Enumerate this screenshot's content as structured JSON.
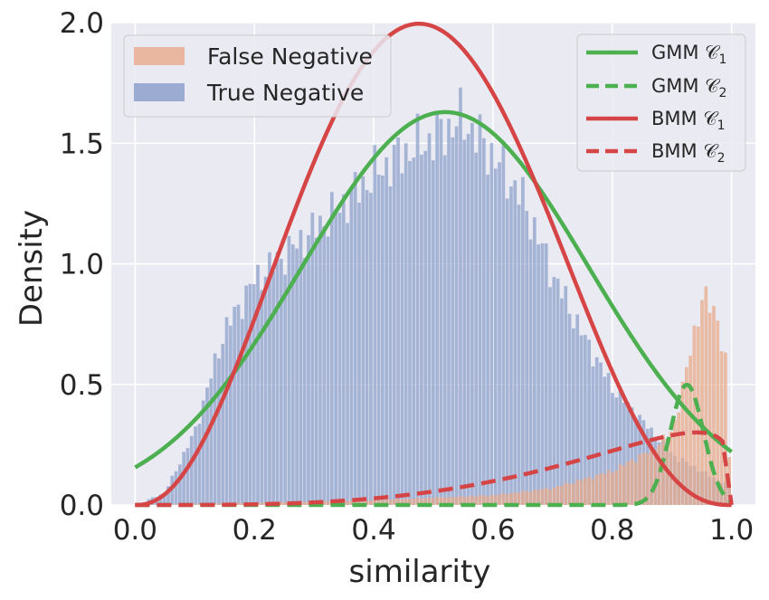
{
  "chart_data": {
    "type": "histogram",
    "xlabel": "similarity",
    "ylabel": "Density",
    "xlim": [
      -0.04,
      1.04
    ],
    "ylim": [
      0,
      2.0
    ],
    "xticks": [
      "0.0",
      "0.2",
      "0.4",
      "0.6",
      "0.8",
      "1.0"
    ],
    "yticks": [
      "0.0",
      "0.5",
      "1.0",
      "1.5",
      "2.0"
    ],
    "grid": true,
    "background": "#eaeaf2",
    "colors": {
      "true_negative": "#8da0cb",
      "false_negative": "#e8a98a",
      "gmm": "#4caf50",
      "bmm": "#d64545"
    },
    "histograms": [
      {
        "name": "False Negative",
        "color": "#e8a98a",
        "bins_x_start": 0.02,
        "bins_x_end": 1.0,
        "density_profile": [
          [
            0.02,
            0.0
          ],
          [
            0.2,
            0.01
          ],
          [
            0.4,
            0.02
          ],
          [
            0.6,
            0.04
          ],
          [
            0.7,
            0.07
          ],
          [
            0.8,
            0.14
          ],
          [
            0.86,
            0.22
          ],
          [
            0.9,
            0.3
          ],
          [
            0.92,
            0.5
          ],
          [
            0.95,
            0.86
          ],
          [
            0.975,
            0.8
          ],
          [
            0.99,
            0.6
          ],
          [
            1.0,
            0.0
          ]
        ]
      },
      {
        "name": "True Negative",
        "color": "#8da0cb",
        "bins_x_start": 0.02,
        "bins_x_end": 1.0,
        "density_profile": [
          [
            0.02,
            0.02
          ],
          [
            0.05,
            0.05
          ],
          [
            0.1,
            0.3
          ],
          [
            0.15,
            0.72
          ],
          [
            0.2,
            0.93
          ],
          [
            0.3,
            1.14
          ],
          [
            0.35,
            1.25
          ],
          [
            0.4,
            1.37
          ],
          [
            0.45,
            1.46
          ],
          [
            0.5,
            1.52
          ],
          [
            0.55,
            1.6
          ],
          [
            0.6,
            1.45
          ],
          [
            0.65,
            1.27
          ],
          [
            0.7,
            0.96
          ],
          [
            0.75,
            0.71
          ],
          [
            0.8,
            0.49
          ],
          [
            0.85,
            0.35
          ],
          [
            0.9,
            0.21
          ],
          [
            0.95,
            0.14
          ],
          [
            0.98,
            0.1
          ],
          [
            1.0,
            0.08
          ]
        ]
      }
    ],
    "curves": [
      {
        "name": "GMM 𝒞",
        "subscript": "1",
        "color": "#4caf50",
        "dash": "solid",
        "kind": "normal",
        "weight": 0.98,
        "mu": 0.52,
        "sigma": 0.24
      },
      {
        "name": "GMM 𝒞",
        "subscript": "2",
        "color": "#4caf50",
        "dash": "dashed",
        "kind": "normal",
        "weight": 0.035,
        "mu": 0.925,
        "sigma": 0.028
      },
      {
        "name": "BMM 𝒞",
        "subscript": "1",
        "color": "#d64545",
        "dash": "solid",
        "kind": "beta",
        "a": 3.37,
        "b": 3.61,
        "scale": 0.98
      },
      {
        "name": "BMM 𝒞",
        "subscript": "2",
        "color": "#d64545",
        "dash": "dashed",
        "kind": "beta",
        "a": 4.37,
        "b": 1.21,
        "scale": 0.1
      }
    ],
    "legends": [
      {
        "placement": "top-left",
        "entries": [
          "False Negative",
          "True Negative"
        ]
      },
      {
        "placement": "top-right",
        "entries": [
          "GMM 𝒞1",
          "GMM 𝒞2",
          "BMM 𝒞1",
          "BMM 𝒞2"
        ]
      }
    ]
  }
}
